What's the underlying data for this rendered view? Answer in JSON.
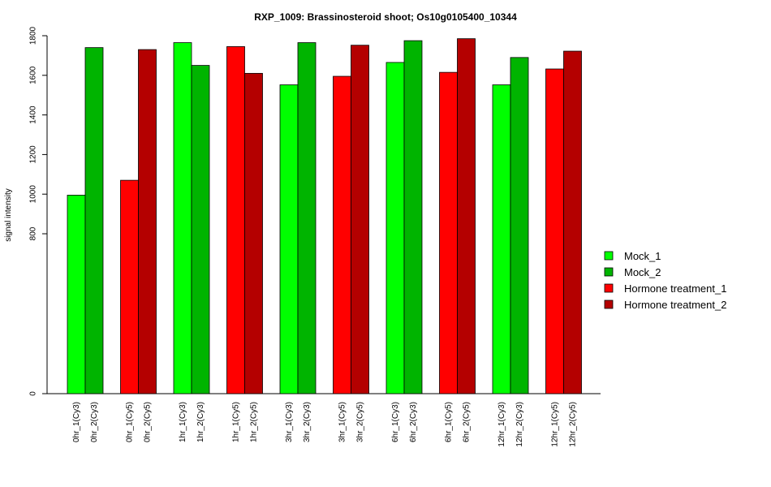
{
  "chart_data": {
    "type": "bar",
    "title": "RXP_1009: Brassinosteroid shoot; Os10g0105400_10344",
    "xlabel": "",
    "ylabel": "signal intensity",
    "y_ticks": [
      0,
      800,
      1000,
      1200,
      1400,
      1600,
      1800
    ],
    "y_scale": "broken-linear (gap between 0 and 800)",
    "categories": [
      "0hr_1(Cy3)",
      "0hr_2(Cy3)",
      "0hr_1(Cy5)",
      "0hr_2(Cy5)",
      "1hr_1(Cy3)",
      "1hr_2(Cy3)",
      "1hr_1(Cy5)",
      "1hr_2(Cy5)",
      "3hr_1(Cy3)",
      "3hr_2(Cy3)",
      "3hr_1(Cy5)",
      "3hr_2(Cy5)",
      "6hr_1(Cy3)",
      "6hr_2(Cy3)",
      "6hr_1(Cy5)",
      "6hr_2(Cy5)",
      "12hr_1(Cy3)",
      "12hr_2(Cy3)",
      "12hr_1(Cy5)",
      "12hr_2(Cy5)"
    ],
    "values": [
      995,
      1740,
      1070,
      1730,
      1765,
      1650,
      1745,
      1610,
      1552,
      1765,
      1595,
      1752,
      1665,
      1775,
      1615,
      1785,
      1552,
      1690,
      1632,
      1722
    ],
    "bar_series": [
      "Mock_1",
      "Mock_2",
      "Hormone treatment_1",
      "Hormone treatment_2",
      "Mock_1",
      "Mock_2",
      "Hormone treatment_1",
      "Hormone treatment_2",
      "Mock_1",
      "Mock_2",
      "Hormone treatment_1",
      "Hormone treatment_2",
      "Mock_1",
      "Mock_2",
      "Hormone treatment_1",
      "Hormone treatment_2",
      "Mock_1",
      "Mock_2",
      "Hormone treatment_1",
      "Hormone treatment_2"
    ],
    "legend": {
      "placement": "right",
      "entries": [
        {
          "label": "Mock_1",
          "color": "#00ff00"
        },
        {
          "label": "Mock_2",
          "color": "#00b400"
        },
        {
          "label": "Hormone treatment_1",
          "color": "#ff0000"
        },
        {
          "label": "Hormone treatment_2",
          "color": "#b40000"
        }
      ]
    },
    "grid": false
  }
}
